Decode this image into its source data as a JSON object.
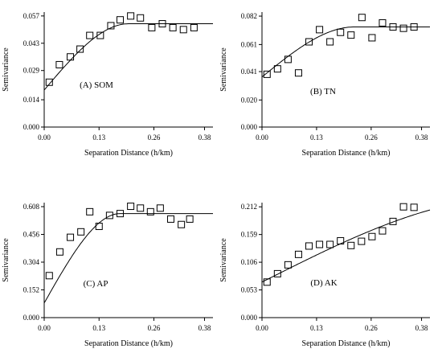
{
  "chart_data": [
    {
      "type": "scatter",
      "title": "(A) SOM",
      "xlabel": "Separation Distance (h/km)",
      "ylabel": "Semivariance",
      "xlim": [
        0,
        0.4
      ],
      "ylim": [
        0,
        0.059
      ],
      "xticks": [
        "0.00",
        "0.13",
        "0.26",
        "0.38"
      ],
      "yticks": [
        "0.000",
        "0.014",
        "0.029",
        "0.043",
        "0.057"
      ],
      "model": {
        "nugget": 0.019,
        "sill": 0.053,
        "range": 0.2
      },
      "x": [
        0.012,
        0.036,
        0.062,
        0.085,
        0.108,
        0.133,
        0.158,
        0.18,
        0.205,
        0.228,
        0.255,
        0.28,
        0.305,
        0.33,
        0.355
      ],
      "y": [
        0.023,
        0.032,
        0.036,
        0.04,
        0.047,
        0.047,
        0.052,
        0.055,
        0.057,
        0.056,
        0.051,
        0.053,
        0.051,
        0.05,
        0.051
      ]
    },
    {
      "type": "scatter",
      "title": "(B) TN",
      "xlabel": "Separation Distance (h/km)",
      "ylabel": "Semivariance",
      "xlim": [
        0,
        0.4
      ],
      "ylim": [
        0,
        0.085
      ],
      "xticks": [
        "0.00",
        "0.13",
        "0.26",
        "0.38"
      ],
      "yticks": [
        "0.000",
        "0.020",
        "0.041",
        "0.061",
        "0.082"
      ],
      "model": {
        "nugget": 0.037,
        "sill": 0.074,
        "range": 0.22
      },
      "x": [
        0.012,
        0.037,
        0.062,
        0.087,
        0.112,
        0.137,
        0.162,
        0.187,
        0.212,
        0.238,
        0.262,
        0.287,
        0.312,
        0.337,
        0.362
      ],
      "y": [
        0.039,
        0.043,
        0.05,
        0.04,
        0.063,
        0.072,
        0.063,
        0.07,
        0.068,
        0.081,
        0.066,
        0.077,
        0.074,
        0.073,
        0.074
      ]
    },
    {
      "type": "scatter",
      "title": "(C) AP",
      "xlabel": "Separation Distance (h/km)",
      "ylabel": "Semivariance",
      "xlim": [
        0,
        0.4
      ],
      "ylim": [
        0,
        0.63
      ],
      "xticks": [
        "0.00",
        "0.13",
        "0.26",
        "0.38"
      ],
      "yticks": [
        "0.000",
        "0.152",
        "0.304",
        "0.456",
        "0.608"
      ],
      "model": {
        "nugget": 0.08,
        "sill": 0.57,
        "range": 0.18
      },
      "x": [
        0.012,
        0.037,
        0.062,
        0.087,
        0.108,
        0.13,
        0.155,
        0.18,
        0.205,
        0.228,
        0.252,
        0.275,
        0.3,
        0.325,
        0.345
      ],
      "y": [
        0.23,
        0.36,
        0.44,
        0.47,
        0.58,
        0.5,
        0.56,
        0.57,
        0.61,
        0.6,
        0.58,
        0.6,
        0.54,
        0.51,
        0.54
      ]
    },
    {
      "type": "scatter",
      "title": "(D) AK",
      "xlabel": "Separation Distance (h/km)",
      "ylabel": "Semivariance",
      "xlim": [
        0,
        0.4
      ],
      "ylim": [
        0,
        0.22
      ],
      "xticks": [
        "0.00",
        "0.13",
        "0.26",
        "0.38"
      ],
      "yticks": [
        "0.000",
        "0.053",
        "0.106",
        "0.159",
        "0.212"
      ],
      "model": {
        "nugget": 0.068,
        "sill": 0.23,
        "range": 0.6
      },
      "x": [
        0.012,
        0.037,
        0.062,
        0.087,
        0.112,
        0.137,
        0.162,
        0.187,
        0.212,
        0.237,
        0.262,
        0.287,
        0.312,
        0.337,
        0.362
      ],
      "y": [
        0.068,
        0.084,
        0.101,
        0.121,
        0.137,
        0.14,
        0.14,
        0.147,
        0.138,
        0.146,
        0.155,
        0.166,
        0.184,
        0.212,
        0.211
      ]
    }
  ]
}
